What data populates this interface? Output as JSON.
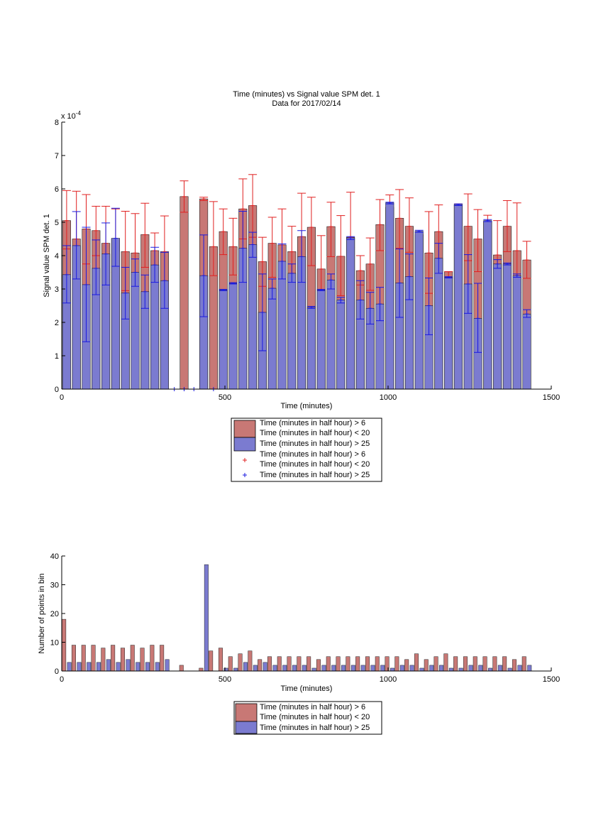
{
  "colors": {
    "series_red": "#c87875",
    "series_blue": "#7b7bd0",
    "err_red": "#e02020",
    "err_blue": "#1a1ae0",
    "axis": "#000000"
  },
  "chart_data": [
    {
      "type": "bar",
      "title": "Time (minutes) vs Signal value SPM det. 1",
      "subtitle": "Data for 2017/02/14",
      "xlabel": "Time (minutes)",
      "ylabel": "Signal value SPM det. 1",
      "exponent_label": "x 10",
      "exponent_power": "-4",
      "xlim": [
        0,
        1500
      ],
      "ylim": [
        0,
        8
      ],
      "x_ticks": [
        0,
        500,
        1000,
        1500
      ],
      "y_ticks": [
        0,
        1,
        2,
        3,
        4,
        5,
        6,
        7,
        8
      ],
      "legend": [
        "Time (minutes in half hour) > 6",
        "Time (minutes in half hour) < 20",
        "Time (minutes in half hour) > 25",
        "Time (minutes in half hour) > 6",
        "Time (minutes in half hour) < 20",
        "Time (minutes in half hour) > 25"
      ],
      "series": [
        {
          "label_ref": "legend.0",
          "style": "bar",
          "points": [
            {
              "x": 15,
              "y": 5.05,
              "err_lo": 4.2,
              "err_hi": 5.95
            },
            {
              "x": 45,
              "y": 4.5,
              "err_lo": 3.05,
              "err_hi": 5.93
            },
            {
              "x": 75,
              "y": 4.8,
              "err_lo": 3.75,
              "err_hi": 5.83
            },
            {
              "x": 105,
              "y": 4.75,
              "err_lo": 4.0,
              "err_hi": 5.48
            },
            {
              "x": 135,
              "y": 4.37,
              "err_lo": 3.28,
              "err_hi": 5.48
            },
            {
              "x": 165,
              "y": 4.5,
              "err_lo": 3.5,
              "err_hi": 5.4
            },
            {
              "x": 195,
              "y": 4.12,
              "err_lo": 2.95,
              "err_hi": 5.33
            },
            {
              "x": 225,
              "y": 4.08,
              "err_lo": 2.92,
              "err_hi": 5.26
            },
            {
              "x": 255,
              "y": 4.63,
              "err_lo": 3.65,
              "err_hi": 5.57
            },
            {
              "x": 285,
              "y": 4.15,
              "err_lo": 3.62,
              "err_hi": 4.68
            },
            {
              "x": 315,
              "y": 4.12,
              "err_lo": 3.12,
              "err_hi": 5.19
            },
            {
              "x": 375,
              "y": 5.77,
              "err_lo": 5.3,
              "err_hi": 6.24
            },
            {
              "x": 435,
              "y": 5.7,
              "err_lo": 5.65,
              "err_hi": 5.75
            },
            {
              "x": 465,
              "y": 4.27,
              "err_lo": 3.4,
              "err_hi": 5.62
            },
            {
              "x": 495,
              "y": 4.72,
              "err_lo": 4.03,
              "err_hi": 5.4
            },
            {
              "x": 525,
              "y": 4.27,
              "err_lo": 3.42,
              "err_hi": 5.12
            },
            {
              "x": 555,
              "y": 5.4,
              "err_lo": 4.5,
              "err_hi": 6.3
            },
            {
              "x": 585,
              "y": 5.5,
              "err_lo": 4.55,
              "err_hi": 6.43
            },
            {
              "x": 615,
              "y": 3.82,
              "err_lo": 3.08,
              "err_hi": 4.55
            },
            {
              "x": 645,
              "y": 4.37,
              "err_lo": 3.35,
              "err_hi": 5.15
            },
            {
              "x": 675,
              "y": 4.32,
              "err_lo": 3.3,
              "err_hi": 5.4
            },
            {
              "x": 705,
              "y": 4.12,
              "err_lo": 3.35,
              "err_hi": 4.88
            },
            {
              "x": 735,
              "y": 4.57,
              "err_lo": 3.3,
              "err_hi": 5.87
            },
            {
              "x": 765,
              "y": 4.85,
              "err_lo": 3.7,
              "err_hi": 5.75
            },
            {
              "x": 795,
              "y": 3.6,
              "err_lo": 2.58,
              "err_hi": 4.6
            },
            {
              "x": 825,
              "y": 4.87,
              "err_lo": 3.97,
              "err_hi": 5.6
            },
            {
              "x": 855,
              "y": 3.98,
              "err_lo": 2.8,
              "err_hi": 5.2
            },
            {
              "x": 885,
              "y": 4.55,
              "err_lo": 4.25,
              "err_hi": 5.9
            },
            {
              "x": 915,
              "y": 3.55,
              "err_lo": 3.12,
              "err_hi": 4.0
            },
            {
              "x": 945,
              "y": 3.75,
              "err_lo": 2.96,
              "err_hi": 4.53
            },
            {
              "x": 975,
              "y": 4.93,
              "err_lo": 4.15,
              "err_hi": 5.68
            },
            {
              "x": 1005,
              "y": 5.45,
              "err_lo": 4.9,
              "err_hi": 5.82
            },
            {
              "x": 1035,
              "y": 5.12,
              "err_lo": 4.22,
              "err_hi": 5.98
            },
            {
              "x": 1065,
              "y": 4.88,
              "err_lo": 4.1,
              "err_hi": 5.73
            },
            {
              "x": 1095,
              "y": 4.62,
              "err_lo": 4.6,
              "err_hi": 4.64
            },
            {
              "x": 1125,
              "y": 4.08,
              "err_lo": 2.87,
              "err_hi": 5.32
            },
            {
              "x": 1155,
              "y": 4.72,
              "err_lo": 3.85,
              "err_hi": 5.52
            },
            {
              "x": 1185,
              "y": 3.52,
              "err_lo": 2.38,
              "err_hi": 3.52
            },
            {
              "x": 1215,
              "y": 5.52,
              "err_lo": 4.2,
              "err_hi": 5.55
            },
            {
              "x": 1245,
              "y": 4.88,
              "err_lo": 3.85,
              "err_hi": 5.85
            },
            {
              "x": 1275,
              "y": 4.5,
              "err_lo": 3.52,
              "err_hi": 5.38
            },
            {
              "x": 1305,
              "y": 5.02,
              "err_lo": 5.0,
              "err_hi": 5.21
            },
            {
              "x": 1335,
              "y": 4.02,
              "err_lo": 3.0,
              "err_hi": 5.05
            },
            {
              "x": 1365,
              "y": 4.88,
              "err_lo": 4.12,
              "err_hi": 5.65
            },
            {
              "x": 1395,
              "y": 4.15,
              "err_lo": 2.9,
              "err_hi": 5.58
            },
            {
              "x": 1425,
              "y": 3.87,
              "err_lo": 3.32,
              "err_hi": 4.43
            }
          ]
        },
        {
          "label_ref": "legend.2",
          "style": "bar",
          "points": [
            {
              "x": 15,
              "y": 3.43,
              "err_lo": 2.58,
              "err_hi": 4.3
            },
            {
              "x": 45,
              "y": 4.3,
              "err_lo": 3.3,
              "err_hi": 5.32
            },
            {
              "x": 75,
              "y": 3.13,
              "err_lo": 1.42,
              "err_hi": 4.85
            },
            {
              "x": 105,
              "y": 3.62,
              "err_lo": 2.83,
              "err_hi": 4.47
            },
            {
              "x": 135,
              "y": 4.05,
              "err_lo": 3.12,
              "err_hi": 4.98
            },
            {
              "x": 165,
              "y": 4.52,
              "err_lo": 3.68,
              "err_hi": 5.42
            },
            {
              "x": 195,
              "y": 2.88,
              "err_lo": 2.1,
              "err_hi": 3.65
            },
            {
              "x": 225,
              "y": 3.5,
              "err_lo": 3.08,
              "err_hi": 3.9
            },
            {
              "x": 255,
              "y": 2.92,
              "err_lo": 2.42,
              "err_hi": 3.42
            },
            {
              "x": 285,
              "y": 3.72,
              "err_lo": 3.2,
              "err_hi": 4.25
            },
            {
              "x": 315,
              "y": 3.25,
              "err_lo": 2.42,
              "err_hi": 4.1
            },
            {
              "x": 345,
              "y": 0
            },
            {
              "x": 375,
              "y": 0
            },
            {
              "x": 405,
              "y": 0
            },
            {
              "x": 435,
              "y": 3.4,
              "err_lo": 2.17,
              "err_hi": 4.62
            },
            {
              "x": 465,
              "y": 0
            },
            {
              "x": 495,
              "y": 2.97,
              "err_lo": 2.95,
              "err_hi": 2.99
            },
            {
              "x": 525,
              "y": 3.17,
              "err_lo": 3.15,
              "err_hi": 3.19
            },
            {
              "x": 555,
              "y": 4.22,
              "err_lo": 3.2,
              "err_hi": 5.33
            },
            {
              "x": 585,
              "y": 4.33,
              "err_lo": 3.95,
              "err_hi": 4.7
            },
            {
              "x": 615,
              "y": 2.3,
              "err_lo": 1.15,
              "err_hi": 3.45
            },
            {
              "x": 645,
              "y": 3.02,
              "err_lo": 2.7,
              "err_hi": 3.3
            },
            {
              "x": 675,
              "y": 3.83,
              "err_lo": 3.3,
              "err_hi": 4.35
            },
            {
              "x": 705,
              "y": 3.47,
              "err_lo": 3.2,
              "err_hi": 3.75
            },
            {
              "x": 735,
              "y": 3.97,
              "err_lo": 3.2,
              "err_hi": 4.75
            },
            {
              "x": 765,
              "y": 2.45,
              "err_lo": 2.42,
              "err_hi": 2.48
            },
            {
              "x": 795,
              "y": 2.97,
              "err_lo": 2.95,
              "err_hi": 2.99
            },
            {
              "x": 825,
              "y": 3.27,
              "err_lo": 3.0,
              "err_hi": 3.45
            },
            {
              "x": 855,
              "y": 2.67,
              "err_lo": 2.58,
              "err_hi": 2.75
            },
            {
              "x": 885,
              "y": 4.53,
              "err_lo": 4.48,
              "err_hi": 4.57
            },
            {
              "x": 915,
              "y": 2.67,
              "err_lo": 2.1,
              "err_hi": 3.25
            },
            {
              "x": 945,
              "y": 2.42,
              "err_lo": 1.95,
              "err_hi": 2.9
            },
            {
              "x": 975,
              "y": 2.55,
              "err_lo": 2.05,
              "err_hi": 3.05
            },
            {
              "x": 1005,
              "y": 5.58,
              "err_lo": 5.55,
              "err_hi": 5.6
            },
            {
              "x": 1035,
              "y": 3.18,
              "err_lo": 2.15,
              "err_hi": 4.2
            },
            {
              "x": 1065,
              "y": 3.37,
              "err_lo": 2.68,
              "err_hi": 4.05
            },
            {
              "x": 1095,
              "y": 4.73,
              "err_lo": 4.7,
              "err_hi": 4.76
            },
            {
              "x": 1125,
              "y": 2.5,
              "err_lo": 1.63,
              "err_hi": 3.33
            },
            {
              "x": 1155,
              "y": 3.92,
              "err_lo": 3.47,
              "err_hi": 4.37
            },
            {
              "x": 1185,
              "y": 3.35,
              "err_lo": 3.33,
              "err_hi": 3.37
            },
            {
              "x": 1215,
              "y": 5.53,
              "err_lo": 5.5,
              "err_hi": 5.55
            },
            {
              "x": 1245,
              "y": 3.15,
              "err_lo": 2.27,
              "err_hi": 4.03
            },
            {
              "x": 1275,
              "y": 2.12,
              "err_lo": 1.1,
              "err_hi": 3.17
            },
            {
              "x": 1305,
              "y": 5.05,
              "err_lo": 5.02,
              "err_hi": 5.08
            },
            {
              "x": 1335,
              "y": 3.75,
              "err_lo": 3.62,
              "err_hi": 3.88
            },
            {
              "x": 1365,
              "y": 3.75,
              "err_lo": 3.72,
              "err_hi": 3.78
            },
            {
              "x": 1395,
              "y": 3.4,
              "err_lo": 3.35,
              "err_hi": 3.45
            },
            {
              "x": 1425,
              "y": 2.25,
              "err_lo": 2.15,
              "err_hi": 2.38
            }
          ]
        }
      ]
    },
    {
      "type": "bar",
      "title": "",
      "xlabel": "Time (minutes)",
      "ylabel": "Number of points in bin",
      "xlim": [
        0,
        1500
      ],
      "ylim": [
        0,
        40
      ],
      "x_ticks": [
        0,
        500,
        1000,
        1500
      ],
      "y_ticks": [
        0,
        10,
        20,
        30,
        40
      ],
      "legend": [
        "Time (minutes in half hour) > 6",
        "Time (minutes in half hour) < 20",
        "Time (minutes in half hour) > 25"
      ],
      "x": [
        15,
        45,
        75,
        105,
        135,
        165,
        195,
        225,
        255,
        285,
        315,
        375,
        435,
        465,
        495,
        525,
        555,
        585,
        615,
        645,
        675,
        705,
        735,
        765,
        795,
        825,
        855,
        885,
        915,
        945,
        975,
        1005,
        1035,
        1065,
        1095,
        1125,
        1155,
        1185,
        1215,
        1245,
        1275,
        1305,
        1335,
        1365,
        1395,
        1425
      ],
      "series": [
        {
          "label_ref": "legend.0",
          "values": [
            18,
            9,
            9,
            9,
            8,
            9,
            8,
            9,
            8,
            9,
            9,
            2,
            1,
            7,
            8,
            5,
            6,
            7,
            4,
            5,
            5,
            5,
            5,
            5,
            4,
            5,
            5,
            5,
            5,
            5,
            5,
            5,
            5,
            4,
            6,
            4,
            5,
            6,
            5,
            5,
            5,
            5,
            5,
            5,
            4,
            5
          ]
        },
        {
          "label_ref": "legend.2",
          "values": [
            3,
            3,
            3,
            3,
            4,
            3,
            4,
            3,
            3,
            3,
            4,
            0,
            37,
            0,
            1,
            1,
            3,
            2,
            3,
            2,
            2,
            2,
            2,
            1,
            2,
            2,
            2,
            2,
            2,
            2,
            2,
            1,
            2,
            2,
            1,
            2,
            2,
            1,
            1,
            2,
            2,
            1,
            2,
            1,
            2,
            2
          ]
        }
      ]
    }
  ]
}
